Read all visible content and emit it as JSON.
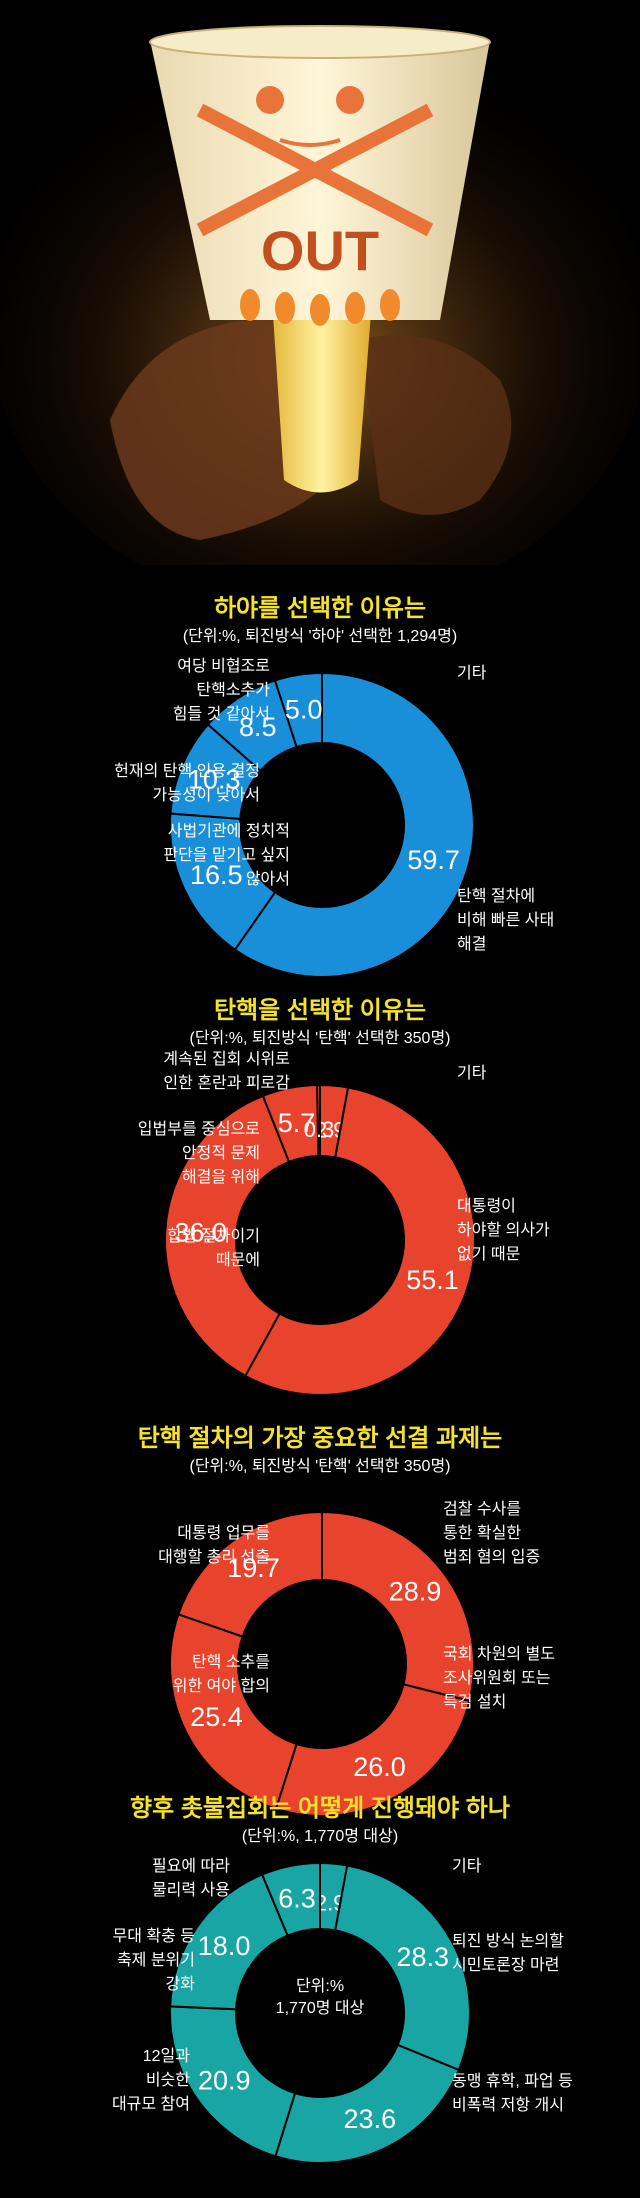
{
  "chart_data": [
    {
      "type": "pie",
      "title": "하야를 선택한 이유는",
      "subtitle": "(단위:%, 퇴진방식 '하야' 선택한 1,294명)",
      "color": "#1a8fd9",
      "categories": [
        "탄핵 절차에 비해 빠른 사태 해결",
        "사법기관에 정치적 판단을 맡기고 싶지 않아서",
        "헌재의 탄핵 인용 결정 가능성이 낮아서",
        "여당 비협조로 탄핵소추가 힘들 것 같아서",
        "기타"
      ],
      "values": [
        59.7,
        16.5,
        10.3,
        8.5,
        5.0
      ],
      "labels": [
        "59.7",
        "16.5",
        "10.3",
        "8.5",
        "5.0"
      ],
      "legend": [
        {
          "lines": [
            "탄핵 절차에",
            "비해 빠른 사태",
            "해결"
          ]
        },
        {
          "lines": [
            "사법기관에 정치적",
            "판단을 맡기고 싶지",
            "않아서"
          ]
        },
        {
          "lines": [
            "헌재의 탄핵 인용 결정",
            "가능성이 낮아서"
          ]
        },
        {
          "lines": [
            "여당 비협조로",
            "탄핵소추가",
            "힘들 것 같아서"
          ]
        },
        {
          "lines": [
            "기타"
          ]
        }
      ]
    },
    {
      "type": "pie",
      "title": "탄핵을 선택한 이유는",
      "subtitle": "(단위:%, 퇴진방식 '탄핵' 선택한 350명)",
      "color": "#e8432c",
      "categories": [
        "대통령이 하야할 의사가 없기 때문",
        "합법 절차이기 때문에",
        "입법부를 중심으로 안정적 문제 해결을 위해",
        "계속된 집회 시위로 인한 혼란과 피로감",
        "기타"
      ],
      "values": [
        55.1,
        36.0,
        5.7,
        0.3,
        2.9
      ],
      "labels": [
        "55.1",
        "36.0",
        "5.7",
        "0.3",
        "2.9"
      ],
      "legend": [
        {
          "lines": [
            "대통령이",
            "하야할 의사가",
            "없기 때문"
          ]
        },
        {
          "lines": [
            "합법 절차이기",
            "때문에"
          ]
        },
        {
          "lines": [
            "입법부를 중심으로",
            "안정적 문제",
            "해결을 위해"
          ]
        },
        {
          "lines": [
            "계속된 집회 시위로",
            "인한 혼란과 피로감"
          ]
        },
        {
          "lines": [
            "기타"
          ]
        }
      ]
    },
    {
      "type": "pie",
      "title": "탄핵 절차의 가장 중요한 선결 과제는",
      "subtitle": "(단위:%, 퇴진방식 '탄핵' 선택한 350명)",
      "color": "#e8432c",
      "categories": [
        "검찰 수사를 통한 확실한 범죄 혐의 입증",
        "국회 차원의 별도 조사위원회 또는 특검 설치",
        "탄핵 소추를 위한 여야 합의",
        "대통령 업무를 대행할 총리 선출"
      ],
      "values": [
        28.9,
        26.0,
        25.4,
        19.7
      ],
      "labels": [
        "28.9",
        "26.0",
        "25.4",
        "19.7"
      ],
      "legend": [
        {
          "lines": [
            "검찰 수사를",
            "통한 확실한",
            "범죄 혐의 입증"
          ]
        },
        {
          "lines": [
            "국회 차원의 별도",
            "조사위원회 또는",
            "특검 설치"
          ]
        },
        {
          "lines": [
            "탄핵 소추를",
            "위한 여야 합의"
          ]
        },
        {
          "lines": [
            "대통령 업무를",
            "대행할 총리 선출"
          ]
        }
      ]
    },
    {
      "type": "pie",
      "title": "향후 촛불집회는 어떻게 진행돼야 하나",
      "subtitle": "(단위:%, 1,770명 대상)",
      "center_label": [
        "단위:%",
        "1,770명 대상"
      ],
      "color": "#1aa5a5",
      "categories": [
        "퇴진 방식 논의할 시민토론장 마련",
        "동맹 휴학, 파업 등 비폭력 저항 개시",
        "12일과 비슷한 대규모 참여",
        "무대 확충 등 축제 분위기 강화",
        "필요에 따라 물리력 사용",
        "기타"
      ],
      "values": [
        28.3,
        23.6,
        20.9,
        18.0,
        6.3,
        2.9
      ],
      "labels": [
        "28.3",
        "23.6",
        "20.9",
        "18.0",
        "6.3",
        "2.9"
      ],
      "legend": [
        {
          "lines": [
            "퇴진 방식 논의할",
            "시민토론장 마련"
          ]
        },
        {
          "lines": [
            "동맹 휴학, 파업 등",
            "비폭력 저항 개시"
          ]
        },
        {
          "lines": [
            "12일과",
            "비슷한",
            "대규모 참여"
          ]
        },
        {
          "lines": [
            "무대 확충 등",
            "축제 분위기",
            "강화"
          ]
        },
        {
          "lines": [
            "필요에 따라",
            "물리력 사용"
          ]
        },
        {
          "lines": [
            "기타"
          ]
        }
      ]
    }
  ],
  "hero_cup": {
    "text": "OUT"
  }
}
